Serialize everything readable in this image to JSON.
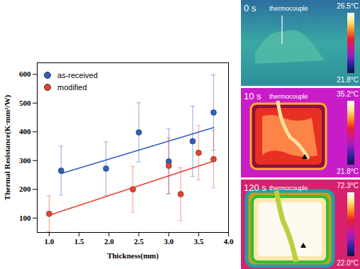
{
  "chart_data": {
    "type": "scatter",
    "x_label": "Thickness(mm)",
    "y_label": "Thermal Resistance(K·mm²/W)",
    "xlim": [
      0.8,
      4.0
    ],
    "xticks": [
      {
        "value": 1.0,
        "label": "1.0"
      },
      {
        "value": 1.5,
        "label": "1.5"
      },
      {
        "value": 2.0,
        "label": "2.0"
      },
      {
        "value": 2.5,
        "label": "2.5"
      },
      {
        "value": 3.0,
        "label": "3.0"
      },
      {
        "value": 3.5,
        "label": "3.5"
      },
      {
        "value": 4.0,
        "label": "4.0"
      }
    ],
    "ylim": [
      50,
      640
    ],
    "yticks": [
      100,
      200,
      300,
      400,
      500,
      600
    ],
    "legend": "upper left",
    "marker": "circle",
    "series": [
      {
        "name": "as-received",
        "color": "#2f5fbf",
        "x": [
          1.2,
          1.95,
          2.5,
          3.0,
          3.4,
          3.75
        ],
        "values": [
          265,
          272,
          398,
          297,
          367,
          467
        ],
        "errors": [
          85,
          93,
          103,
          113,
          122,
          131
        ],
        "fit_x": [
          1.2,
          3.75
        ],
        "fit_values": [
          255,
          415
        ]
      },
      {
        "name": "modified",
        "color": "#f0402a",
        "x": [
          1.0,
          2.4,
          3.0,
          3.2,
          3.5,
          3.75
        ],
        "values": [
          115,
          200,
          282,
          183,
          327,
          305
        ],
        "errors": [
          62,
          80,
          97,
          92,
          95,
          100
        ],
        "fit_x": [
          1.0,
          3.75
        ],
        "fit_values": [
          110,
          298
        ]
      }
    ]
  },
  "thermal_images": [
    {
      "time": "0 s",
      "label": "thermocouple",
      "max": "26.5°C",
      "min": "21.8°C"
    },
    {
      "time": "10 s",
      "label": "thermocouple",
      "max": "35.2°C",
      "min": "21.8°C"
    },
    {
      "time": "120 s",
      "label": "thermocouple",
      "max": "72.3°C",
      "min": "22.0°C"
    }
  ]
}
